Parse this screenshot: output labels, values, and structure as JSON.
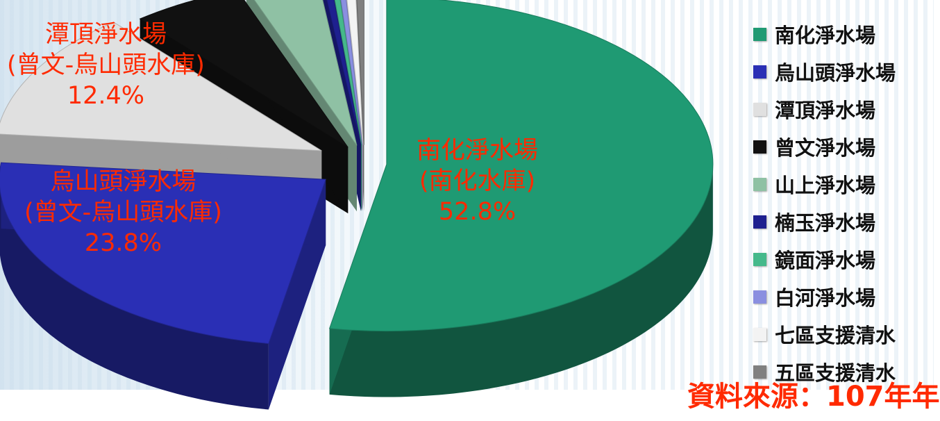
{
  "chart_data": {
    "type": "pie",
    "slices": [
      {
        "name": "南化淨水場",
        "value": 52.8,
        "color": "#1f9a73"
      },
      {
        "name": "烏山頭淨水場",
        "value": 23.8,
        "color": "#2a2fb5"
      },
      {
        "name": "潭頂淨水場",
        "value": 12.4,
        "color": "#e0e0e0"
      },
      {
        "name": "曾文淨水場",
        "value": 5.5,
        "color": "#111111"
      },
      {
        "name": "山上淨水場",
        "value": 3.6,
        "color": "#8fc1a4"
      },
      {
        "name": "楠玉淨水場",
        "value": 0.4,
        "color": "#1e208f"
      },
      {
        "name": "鏡面淨水場",
        "value": 0.3,
        "color": "#45b98b"
      },
      {
        "name": "白河淨水場",
        "value": 0.3,
        "color": "#8a8fe0"
      },
      {
        "name": "七區支援清水",
        "value": 0.5,
        "color": "#f3f3f3"
      },
      {
        "name": "五區支援清水",
        "value": 0.4,
        "color": "#808080"
      }
    ],
    "labels": [
      {
        "slice": "南化淨水場",
        "name": "南化淨水場",
        "sub": "(南化水庫)",
        "pct": "52.8%"
      },
      {
        "slice": "烏山頭淨水場",
        "name": "烏山頭淨水場",
        "sub": "(曾文-烏山頭水庫)",
        "pct": "23.8%"
      },
      {
        "slice": "潭頂淨水場",
        "name": "潭頂淨水場",
        "sub": "(曾文-烏山頭水庫)",
        "pct": "12.4%"
      }
    ],
    "legend": {
      "placement": "right",
      "entries": [
        "南化淨水場",
        "烏山頭淨水場",
        "潭頂淨水場",
        "曾文淨水場",
        "山上淨水場",
        "楠玉淨水場",
        "鏡面淨水場",
        "白河淨水場",
        "七區支援清水",
        "五區支援清水"
      ]
    },
    "label_color": "#ff2a00"
  },
  "source_note": "資料來源：107年年"
}
